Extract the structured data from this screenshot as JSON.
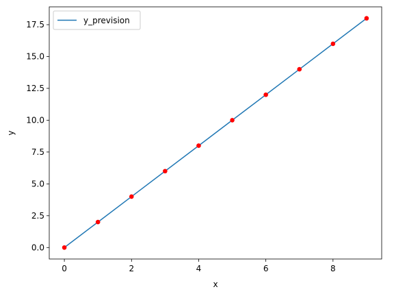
{
  "chart_data": {
    "type": "line",
    "title": "",
    "xlabel": "x",
    "ylabel": "y",
    "xlim": [
      -0.45,
      9.45
    ],
    "ylim": [
      -0.9,
      18.9
    ],
    "x_ticks": [
      0,
      2,
      4,
      6,
      8
    ],
    "x_tick_labels": [
      "0",
      "2",
      "4",
      "6",
      "8"
    ],
    "y_ticks": [
      0,
      2.5,
      5,
      7.5,
      10,
      12.5,
      15,
      17.5
    ],
    "y_tick_labels": [
      "0.0",
      "2.5",
      "5.0",
      "7.5",
      "10.0",
      "12.5",
      "15.0",
      "17.5"
    ],
    "grid": false,
    "legend_position": "top-left",
    "series": [
      {
        "name": "y_prevision",
        "kind": "line",
        "color": "#1f77b4",
        "x": [
          0,
          1,
          2,
          3,
          4,
          5,
          6,
          7,
          8,
          9
        ],
        "y": [
          0,
          2,
          4,
          6,
          8,
          10,
          12,
          14,
          16,
          18
        ]
      },
      {
        "kind": "scatter",
        "color": "#ff0000",
        "x": [
          0,
          1,
          2,
          3,
          4,
          5,
          6,
          7,
          8,
          9
        ],
        "y": [
          0,
          2,
          4,
          6,
          8,
          10,
          12,
          14,
          16,
          18
        ]
      }
    ]
  }
}
